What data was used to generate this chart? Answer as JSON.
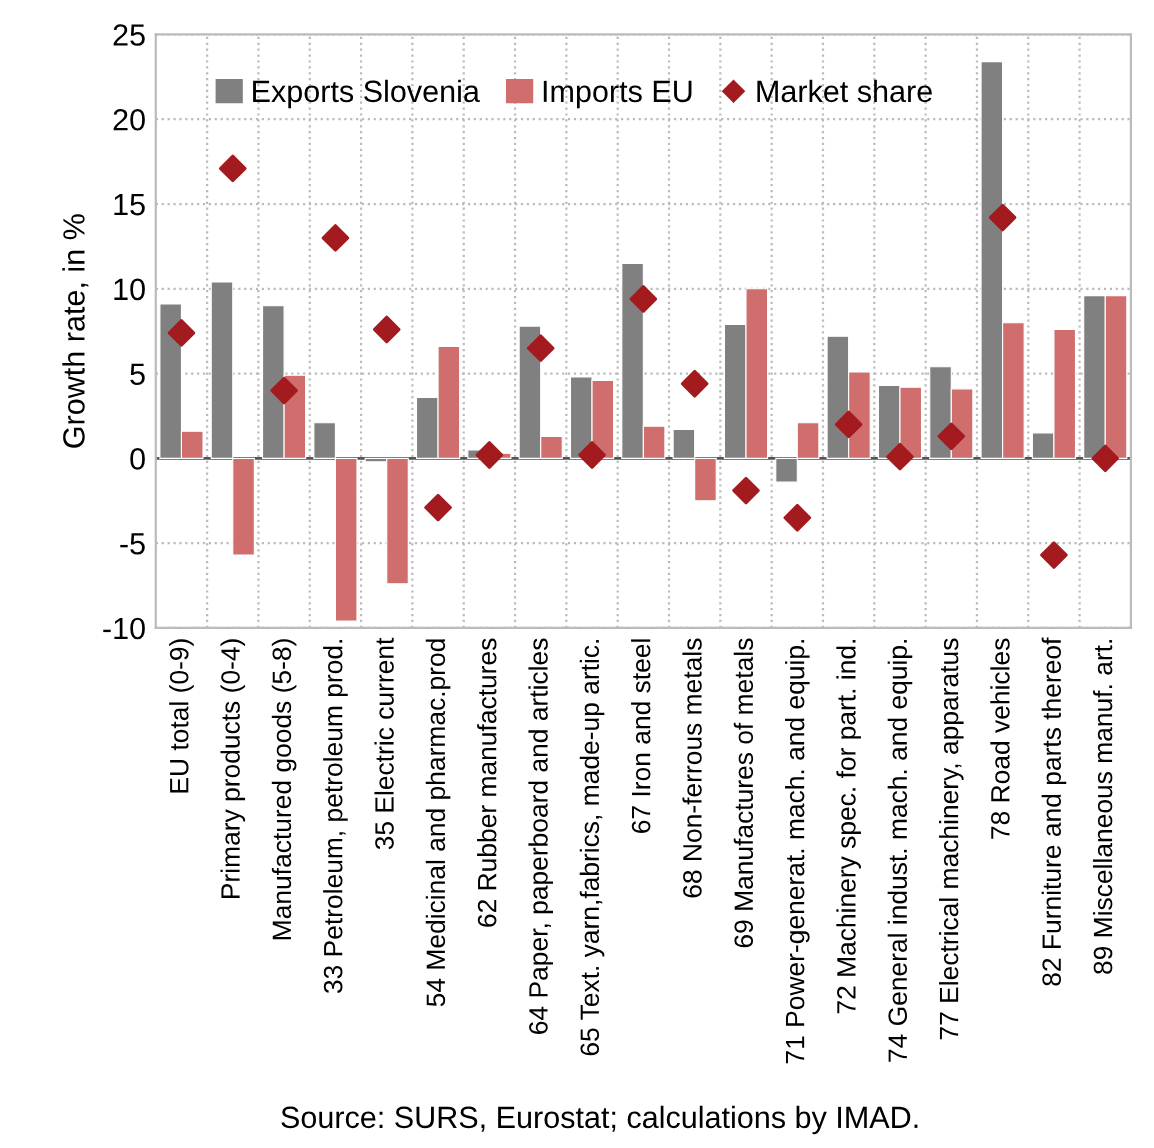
{
  "chart_data": {
    "type": "bar",
    "ylabel": "Growth rate, in %",
    "categories": [
      "EU total (0-9)",
      "Primary products (0-4)",
      "Manufactured goods (5-8)",
      "33 Petroleum, petroleum prod.",
      "35 Electric current",
      "54 Medicinal and pharmac.prod",
      "62 Rubber manufactures",
      "64 Paper, paperboard and articles",
      "65 Text. yarn,fabrics, made-up artic.",
      "67 Iron and steel",
      "68 Non-ferrous metals",
      "69 Manufactures of metals",
      "71 Power-generat. mach. and equip.",
      "72 Machinery spec. for part. ind.",
      "74 General indust. mach. and equip.",
      "77 Electrical machinery, apparatus",
      "78 Road vehicles",
      "82 Furniture and parts thereof",
      "89 Miscellaneous manuf. art."
    ],
    "series": [
      {
        "name": "Exports Slovenia",
        "color": "#808080",
        "values": [
          9.1,
          10.4,
          9.0,
          2.1,
          -0.2,
          3.6,
          0.5,
          7.8,
          4.8,
          11.5,
          1.7,
          7.9,
          -1.4,
          7.2,
          4.3,
          5.4,
          23.4,
          1.5,
          9.6
        ]
      },
      {
        "name": "Imports EU",
        "color": "#d06e6e",
        "values": [
          1.6,
          -5.7,
          4.9,
          -9.6,
          -7.4,
          6.6,
          0.3,
          1.3,
          4.6,
          1.9,
          -2.5,
          10.0,
          2.1,
          5.1,
          4.2,
          4.1,
          8.0,
          7.6,
          9.6
        ]
      },
      {
        "name": "Market share",
        "type": "scatter",
        "marker": "diamond",
        "color": "#a31b1f",
        "values": [
          7.4,
          17.1,
          4.0,
          13.0,
          7.6,
          -2.9,
          0.2,
          6.5,
          0.2,
          9.4,
          4.4,
          -1.9,
          -3.5,
          2.0,
          0.1,
          1.3,
          14.2,
          -5.7,
          0.0
        ]
      }
    ],
    "ylim": [
      -10,
      25
    ],
    "yticks": [
      -10,
      -5,
      0,
      5,
      10,
      15,
      20,
      25
    ],
    "grid": true,
    "legend": "top",
    "annotations": [
      "Source: SURS, Eurostat; calculations by IMAD."
    ]
  }
}
